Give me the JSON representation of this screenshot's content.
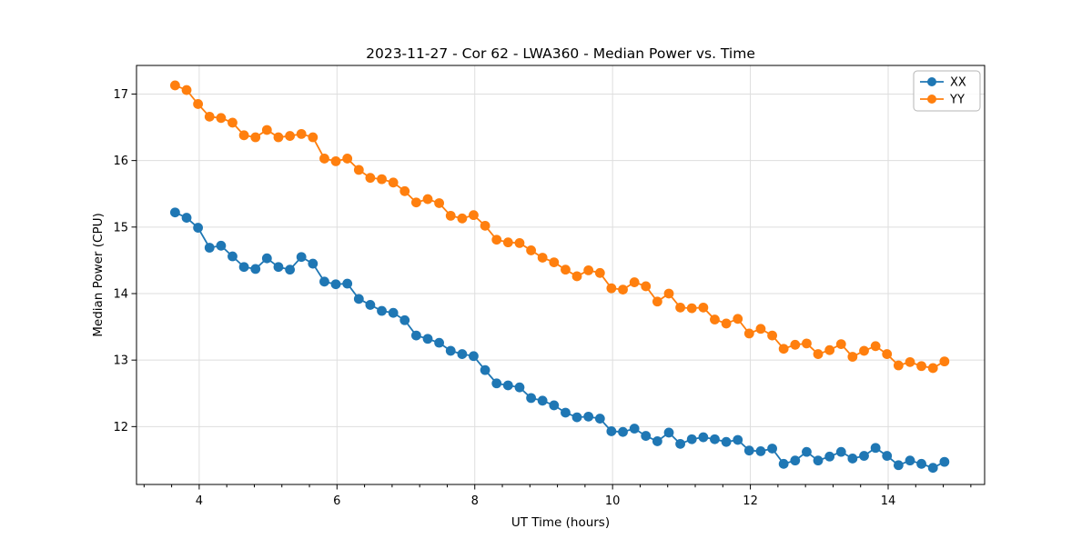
{
  "page": {
    "background": "#ffffff"
  },
  "chart_data": {
    "type": "line",
    "title": "2023-11-27 - Cor 62 - LWA360 - Median Power vs. Time",
    "xlabel": "UT Time (hours)",
    "ylabel": "Median Power (CPU)",
    "xlim": [
      3.09,
      15.4
    ],
    "ylim": [
      11.13,
      17.43
    ],
    "xticks": [
      4,
      6,
      8,
      10,
      12,
      14
    ],
    "yticks": [
      12,
      13,
      14,
      15,
      16,
      17
    ],
    "x_minor_tick_step": 0.4,
    "grid": true,
    "grid_color": "#dedede",
    "spine_color": "#000000",
    "legend": {
      "position": "upper right",
      "entries": [
        "XX",
        "YY"
      ]
    },
    "x": [
      3.65,
      3.817,
      3.983,
      4.15,
      4.317,
      4.483,
      4.65,
      4.817,
      4.983,
      5.15,
      5.317,
      5.483,
      5.65,
      5.817,
      5.983,
      6.15,
      6.317,
      6.483,
      6.65,
      6.817,
      6.983,
      7.15,
      7.317,
      7.483,
      7.65,
      7.817,
      7.983,
      8.15,
      8.317,
      8.483,
      8.65,
      8.817,
      8.983,
      9.15,
      9.317,
      9.483,
      9.65,
      9.817,
      9.983,
      10.15,
      10.317,
      10.483,
      10.65,
      10.817,
      10.983,
      11.15,
      11.317,
      11.483,
      11.65,
      11.817,
      11.983,
      12.15,
      12.317,
      12.483,
      12.65,
      12.817,
      12.983,
      13.15,
      13.317,
      13.483,
      13.65,
      13.817,
      13.983,
      14.15,
      14.317,
      14.483,
      14.65,
      14.817
    ],
    "series": [
      {
        "name": "XX",
        "color": "#1f77b4",
        "marker": "circle",
        "values": [
          15.22,
          15.14,
          14.99,
          14.69,
          14.72,
          14.56,
          14.4,
          14.37,
          14.53,
          14.4,
          14.36,
          14.55,
          14.45,
          14.18,
          14.14,
          14.15,
          13.92,
          13.83,
          13.74,
          13.71,
          13.6,
          13.37,
          13.32,
          13.26,
          13.14,
          13.09,
          13.06,
          12.85,
          12.65,
          12.62,
          12.59,
          12.43,
          12.39,
          12.32,
          12.21,
          12.14,
          12.15,
          12.12,
          11.93,
          11.92,
          11.97,
          11.86,
          11.78,
          11.91,
          11.74,
          11.81,
          11.84,
          11.81,
          11.77,
          11.8,
          11.64,
          11.63,
          11.67,
          11.44,
          11.49,
          11.62,
          11.49,
          11.55,
          11.62,
          11.52,
          11.56,
          11.68,
          11.56,
          11.42,
          11.49,
          11.44,
          11.38,
          11.47
        ]
      },
      {
        "name": "YY",
        "color": "#ff7f0e",
        "marker": "circle",
        "values": [
          17.13,
          17.06,
          16.85,
          16.66,
          16.64,
          16.57,
          16.38,
          16.35,
          16.46,
          16.35,
          16.37,
          16.4,
          16.35,
          16.03,
          15.99,
          16.03,
          15.86,
          15.74,
          15.72,
          15.67,
          15.54,
          15.37,
          15.42,
          15.36,
          15.17,
          15.13,
          15.18,
          15.02,
          14.81,
          14.77,
          14.76,
          14.65,
          14.54,
          14.47,
          14.36,
          14.26,
          14.35,
          14.31,
          14.08,
          14.06,
          14.17,
          14.11,
          13.88,
          14.0,
          13.79,
          13.78,
          13.79,
          13.61,
          13.55,
          13.62,
          13.4,
          13.47,
          13.37,
          13.17,
          13.23,
          13.25,
          13.09,
          13.15,
          13.24,
          13.05,
          13.14,
          13.21,
          13.09,
          12.92,
          12.97,
          12.91,
          12.88,
          12.98
        ]
      }
    ]
  }
}
